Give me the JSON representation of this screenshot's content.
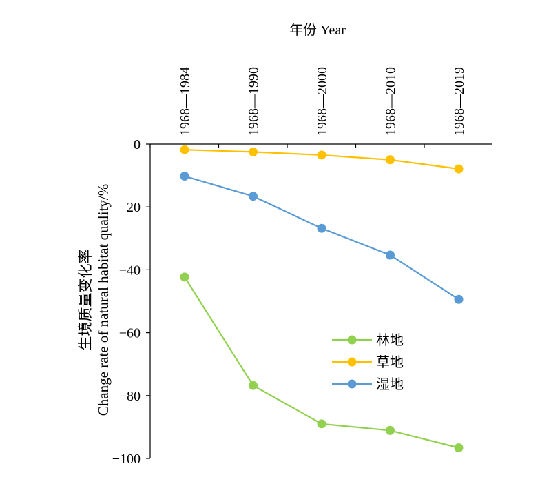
{
  "chart_data": {
    "type": "line",
    "title": "",
    "xlabel": "年份 Year",
    "ylabel_cn": "生境质量变化率",
    "ylabel_en": "Change rate of natural habitat quality/%",
    "categories": [
      "1968—1984",
      "1968—1990",
      "1968—2000",
      "1968—2010",
      "1968—2019"
    ],
    "ylim": [
      -100,
      0
    ],
    "yticks": [
      0,
      -20,
      -40,
      -60,
      -80,
      -100
    ],
    "x_axis_position": "top",
    "grid": false,
    "legend_position": "center-right",
    "series": [
      {
        "name": "林地",
        "color": "#92d050",
        "values": [
          -42.3,
          -76.8,
          -89.0,
          -91.1,
          -96.6
        ]
      },
      {
        "name": "草地",
        "color": "#ffc000",
        "values": [
          -1.8,
          -2.5,
          -3.5,
          -5.0,
          -7.9
        ]
      },
      {
        "name": "湿地",
        "color": "#5b9bd5",
        "values": [
          -10.2,
          -16.6,
          -26.8,
          -35.3,
          -49.4
        ]
      }
    ]
  }
}
